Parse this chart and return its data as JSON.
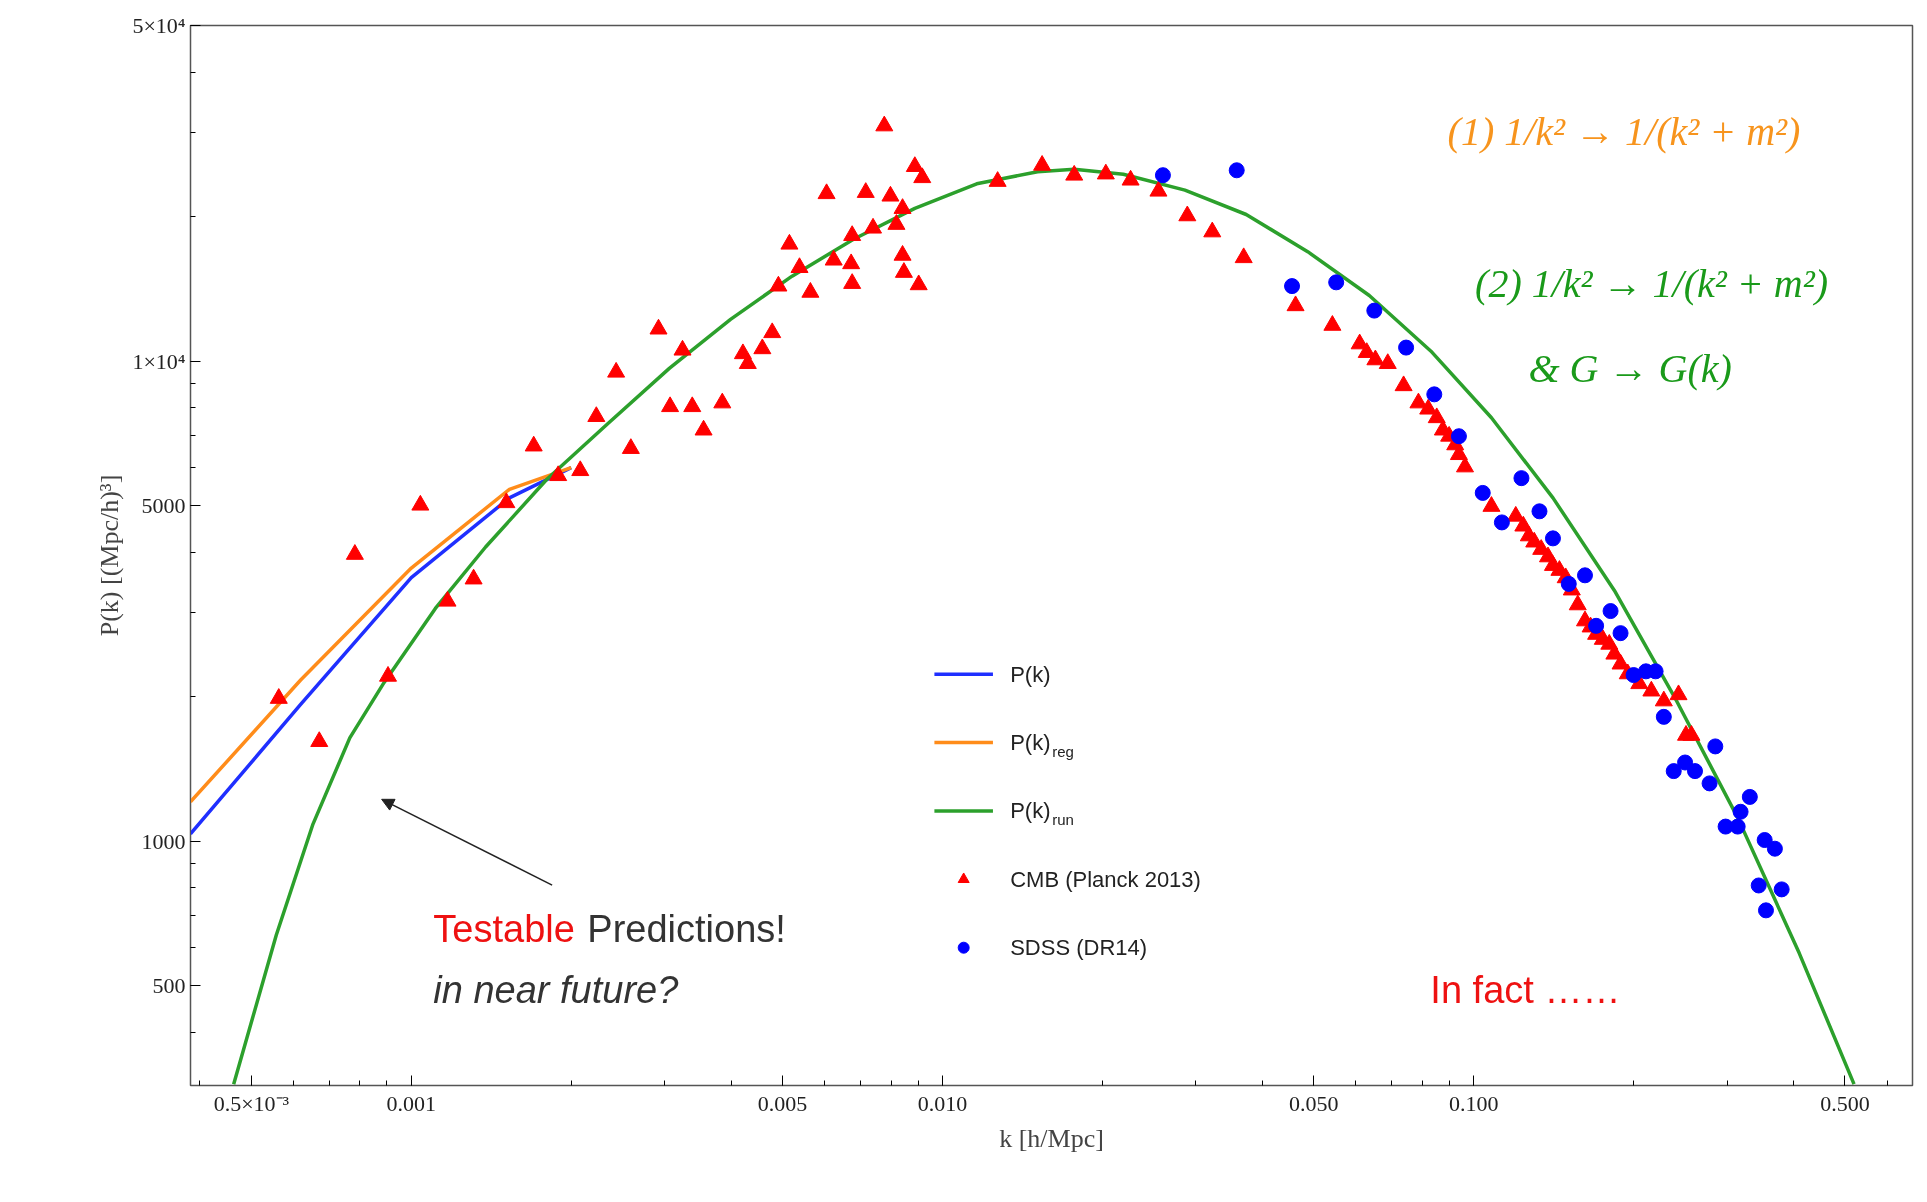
{
  "chart_data": {
    "type": "scatter",
    "log": "xy",
    "xlabel": "k [h/Mpc]",
    "ylabel": "P(k) [(Mpc/h)³]",
    "xlim": [
      0.000384,
      0.67
    ],
    "ylim": [
      310,
      50000
    ],
    "xticks": [
      {
        "value": 0.0005,
        "label": "0.5×10⁻³"
      },
      0.001,
      0.005,
      {
        "value": 0.01,
        "label": "0.010"
      },
      {
        "value": 0.05,
        "label": "0.050"
      },
      {
        "value": 0.1,
        "label": "0.100"
      },
      {
        "value": 0.5,
        "label": "0.500"
      }
    ],
    "yticks": [
      500,
      1000,
      5000,
      {
        "value": 10000,
        "label": "1×10⁴"
      },
      {
        "value": 50000,
        "label": "5×10⁴"
      }
    ],
    "grid": false,
    "legend": "bottom",
    "annotations": [
      "Testable Predictions!",
      "in near future?",
      "In fact ……",
      "(1)  1/k² → 1/(k² + m²)",
      "(2)  1/k² → 1/(k² + m²)",
      "&  G → G(k)"
    ],
    "series": [
      {
        "name": "P(k)",
        "type": "line",
        "color": "#1f2fff",
        "x": [
          0.000384,
          0.000619,
          0.001,
          0.00153,
          0.002
        ],
        "values": [
          1036,
          1927,
          3540,
          5190,
          6000
        ]
      },
      {
        "name": "P(k)$_{reg}$",
        "type": "line",
        "color": "#ff8c1a",
        "x": [
          0.000384,
          0.000619,
          0.001,
          0.00153,
          0.002
        ],
        "values": [
          1208,
          2167,
          3707,
          5407,
          6000
        ]
      },
      {
        "name": "P(k)$_{run}$",
        "type": "line",
        "color": "#2ca02c",
        "x": [
          0.000463,
          0.000557,
          0.000653,
          0.000766,
          0.000889,
          0.00111,
          0.00138,
          0.0018,
          0.00234,
          0.00306,
          0.00399,
          0.00521,
          0.0068,
          0.00887,
          0.0116,
          0.0151,
          0.0177,
          0.0219,
          0.0286,
          0.0373,
          0.0487,
          0.0636,
          0.083,
          0.108,
          0.141,
          0.184,
          0.241,
          0.314,
          0.41,
          0.52
        ],
        "values": [
          312,
          638,
          1086,
          1642,
          2142,
          3054,
          4101,
          5675,
          7396,
          9660,
          12220,
          15030,
          17940,
          20800,
          23400,
          24800,
          25100,
          24500,
          22700,
          20200,
          16900,
          13700,
          10500,
          7620,
          5190,
          3330,
          1960,
          1120,
          585,
          312
        ]
      },
      {
        "name": "CMB  (Planck 2013)",
        "marker": "triangle",
        "color": "#ff0000",
        "x": [
          0.000563,
          0.000671,
          0.000783,
          0.000904,
          0.00104,
          0.00117,
          0.00131,
          0.00151,
          0.0017,
          0.00189,
          0.00208,
          0.00223,
          0.00243,
          0.00259,
          0.00292,
          0.00307,
          0.00324,
          0.00338,
          0.00355,
          0.00385,
          0.00421,
          0.0043,
          0.00458,
          0.00478,
          0.00491,
          0.00515,
          0.00538,
          0.00564,
          0.00605,
          0.00624,
          0.00673,
          0.00676,
          0.00676,
          0.00717,
          0.0074,
          0.00777,
          0.00798,
          0.00819,
          0.00841,
          0.00841,
          0.00846,
          0.00887,
          0.00902,
          0.00916,
          0.0127,
          0.0154,
          0.0177,
          0.0203,
          0.0226,
          0.0255,
          0.0289,
          0.0322,
          0.0369,
          0.0462,
          0.0542,
          0.061,
          0.0629,
          0.0653,
          0.0689,
          0.0738,
          0.0787,
          0.0821,
          0.0852,
          0.0875,
          0.0899,
          0.0923,
          0.0938,
          0.0963,
          0.108,
          0.12,
          0.124,
          0.127,
          0.13,
          0.134,
          0.138,
          0.141,
          0.145,
          0.149,
          0.153,
          0.157,
          0.162,
          0.166,
          0.17,
          0.175,
          0.18,
          0.184,
          0.189,
          0.195,
          0.205,
          0.216,
          0.228,
          0.243,
          0.251,
          0.257
        ],
        "values": [
          1984,
          1613,
          3958,
          2206,
          5012,
          3162,
          3517,
          5071,
          6655,
          5774,
          5914,
          7665,
          9482,
          6576,
          11660,
          8037,
          10540,
          8037,
          7184,
          8182,
          10360,
          9883,
          10610,
          11460,
          14330,
          17520,
          15660,
          13910,
          22320,
          16230,
          15950,
          14510,
          18260,
          22450,
          18920,
          30890,
          22060,
          19260,
          20790,
          16610,
          15300,
          25420,
          14420,
          24100,
          23670,
          25570,
          24390,
          24530,
          23820,
          22590,
          20070,
          18580,
          16420,
          13040,
          11870,
          10860,
          10420,
          10060,
          9883,
          8886,
          8182,
          7943,
          7622,
          7184,
          6975,
          6693,
          6386,
          6020,
          4982,
          4753,
          4533,
          4325,
          4199,
          4053,
          3911,
          3753,
          3665,
          3538,
          3336,
          3107,
          2877,
          2794,
          2697,
          2633,
          2572,
          2453,
          2339,
          2232,
          2129,
          2055,
          1960,
          2019,
          1662,
          1662
        ]
      },
      {
        "name": "SDSS (DR14)",
        "marker": "circle",
        "color": "#0000ff",
        "x": [
          0.026,
          0.0358,
          0.0455,
          0.0551,
          0.065,
          0.0746,
          0.0843,
          0.0938,
          0.104,
          0.113,
          0.123,
          0.133,
          0.141,
          0.151,
          0.162,
          0.17,
          0.181,
          0.189,
          0.2,
          0.211,
          0.22,
          0.228,
          0.238,
          0.25,
          0.261,
          0.278,
          0.285,
          0.298,
          0.314,
          0.318,
          0.331,
          0.353,
          0.369,
          0.344,
          0.355,
          0.38
        ],
        "values": [
          24390,
          24970,
          14330,
          14590,
          12740,
          10670,
          8527,
          6975,
          5315,
          4614,
          5705,
          4866,
          4274,
          3436,
          3580,
          2810,
          3016,
          2713,
          2219,
          2259,
          2259,
          1816,
          1400,
          1459,
          1400,
          1320,
          1576,
          1073,
          1073,
          1152,
          1237,
          1006,
          965,
          809,
          718,
          794
        ]
      }
    ]
  }
}
